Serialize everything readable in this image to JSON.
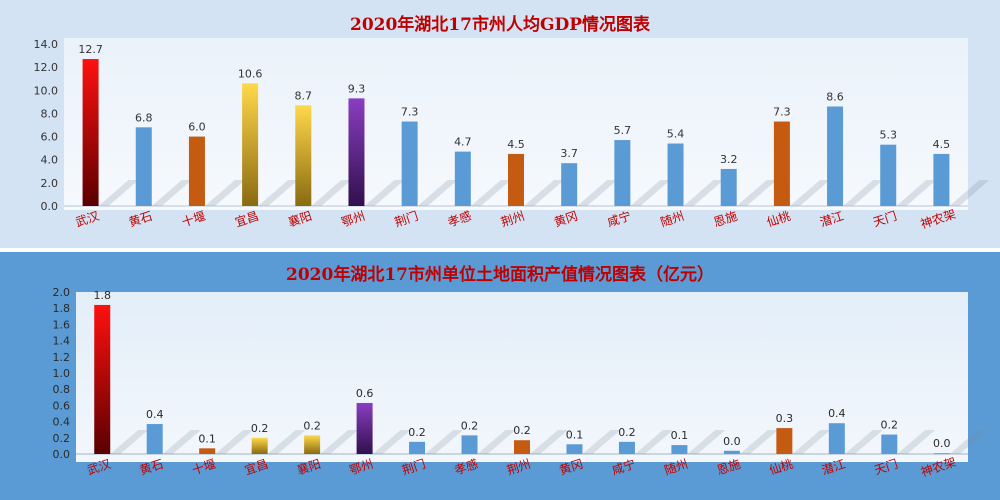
{
  "colors": {
    "red": "#c00000",
    "blue": "#5b9bd5",
    "orange": "#c55a11",
    "gold": "#f5c43a",
    "purple": "#7030a0",
    "label_red": "#c00000"
  },
  "chart_data": [
    {
      "type": "bar",
      "title": "2020年湖北17市州人均GDP情况图表",
      "xlabel": "",
      "ylabel": "",
      "ylim": [
        0,
        14
      ],
      "yticks": [
        "0.0",
        "2.0",
        "4.0",
        "6.0",
        "8.0",
        "10.0",
        "12.0",
        "14.0"
      ],
      "grid": false,
      "categories": [
        "武汉",
        "黄石",
        "十堰",
        "宜昌",
        "襄阳",
        "鄂州",
        "荆门",
        "孝感",
        "荆州",
        "黄冈",
        "咸宁",
        "随州",
        "恩施",
        "仙桃",
        "潜江",
        "天门",
        "神农架"
      ],
      "values": [
        12.7,
        6.8,
        6.0,
        10.6,
        8.7,
        9.3,
        7.3,
        4.7,
        4.5,
        3.7,
        5.7,
        5.4,
        3.2,
        7.3,
        8.6,
        5.3,
        4.5
      ],
      "value_labels": [
        "12.7",
        "6.8",
        "6.0",
        "10.6",
        "8.7",
        "9.3",
        "7.3",
        "4.7",
        "4.5",
        "3.7",
        "5.7",
        "5.4",
        "3.2",
        "7.3",
        "8.6",
        "5.3",
        "4.5"
      ],
      "bar_colors": [
        "red",
        "blue",
        "orange",
        "gold",
        "gold",
        "purple",
        "blue",
        "blue",
        "orange",
        "blue",
        "blue",
        "blue",
        "blue",
        "orange",
        "blue",
        "blue",
        "blue"
      ]
    },
    {
      "type": "bar",
      "title": "2020年湖北17市州单位土地面积产值情况图表（亿元）",
      "xlabel": "",
      "ylabel": "",
      "ylim": [
        0,
        2
      ],
      "yticks": [
        "0.0",
        "0.2",
        "0.4",
        "0.6",
        "0.8",
        "1.0",
        "1.2",
        "1.4",
        "1.6",
        "1.8",
        "2.0"
      ],
      "grid": false,
      "categories": [
        "武汉",
        "黄石",
        "十堰",
        "宜昌",
        "襄阳",
        "鄂州",
        "荆门",
        "孝感",
        "荆州",
        "黄冈",
        "咸宁",
        "随州",
        "恩施",
        "仙桃",
        "潜江",
        "天门",
        "神农架"
      ],
      "values": [
        1.84,
        0.37,
        0.07,
        0.2,
        0.23,
        0.63,
        0.15,
        0.23,
        0.17,
        0.12,
        0.15,
        0.11,
        0.04,
        0.32,
        0.38,
        0.24,
        0.01
      ],
      "value_labels": [
        "1.8",
        "0.4",
        "0.1",
        "0.2",
        "0.2",
        "0.6",
        "0.2",
        "0.2",
        "0.2",
        "0.1",
        "0.2",
        "0.1",
        "0.0",
        "0.3",
        "0.4",
        "0.2",
        "0.0"
      ],
      "bar_colors": [
        "red",
        "blue",
        "orange",
        "gold",
        "gold",
        "purple",
        "blue",
        "blue",
        "orange",
        "blue",
        "blue",
        "blue",
        "blue",
        "orange",
        "blue",
        "blue",
        "blue"
      ]
    }
  ]
}
